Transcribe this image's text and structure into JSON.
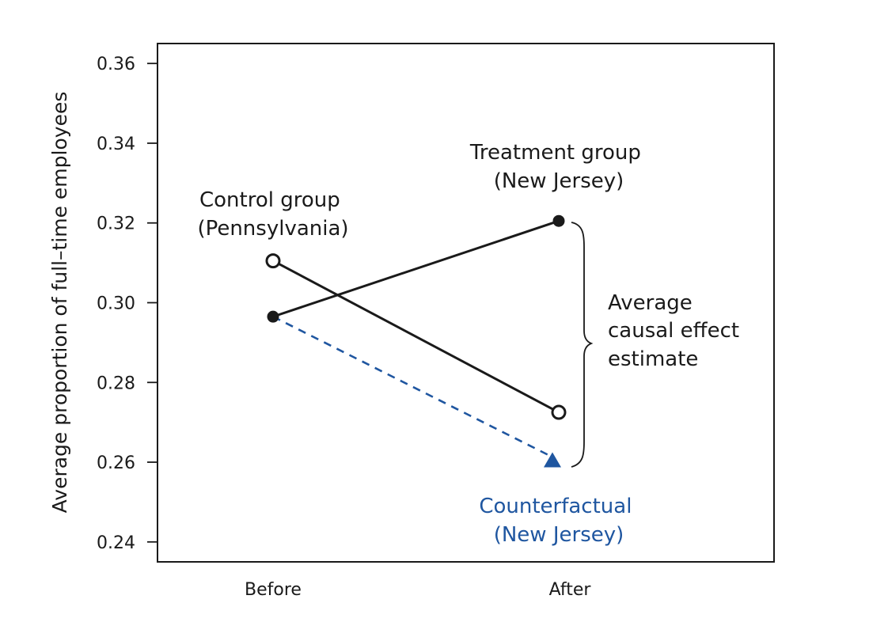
{
  "chart_data": {
    "type": "line",
    "title": "",
    "xlabel": "",
    "ylabel": "Average proportion of full–time employees",
    "categories": [
      "Before",
      "After"
    ],
    "ylim": [
      0.235,
      0.365
    ],
    "yticks": [
      0.24,
      0.26,
      0.28,
      0.3,
      0.32,
      0.34,
      0.36
    ],
    "ytick_labels": [
      "0.24",
      "0.26",
      "0.28",
      "0.30",
      "0.32",
      "0.34",
      "0.36"
    ],
    "grid": false,
    "series": [
      {
        "name": "Treatment group (New Jersey)",
        "values": [
          0.2965,
          0.3205
        ],
        "color": "#1a1a1a",
        "marker": "filled-circle",
        "line_style": "solid"
      },
      {
        "name": "Control group (Pennsylvania)",
        "values": [
          0.3105,
          0.2725
        ],
        "color": "#1a1a1a",
        "marker": "open-circle",
        "line_style": "solid"
      },
      {
        "name": "Counterfactual (New Jersey)",
        "values": [
          0.2965,
          0.2605
        ],
        "color": "#1f56a0",
        "marker": "triangle",
        "line_style": "dashed"
      }
    ],
    "annotations": {
      "treatment_line1": "Treatment group",
      "treatment_line2": "(New Jersey)",
      "control_line1": "Control group",
      "control_line2": "(Pennsylvania)",
      "effect_line1": "Average",
      "effect_line2": "causal effect",
      "effect_line3": "estimate",
      "counterfactual_line1": "Counterfactual",
      "counterfactual_line2": "(New Jersey)"
    }
  }
}
